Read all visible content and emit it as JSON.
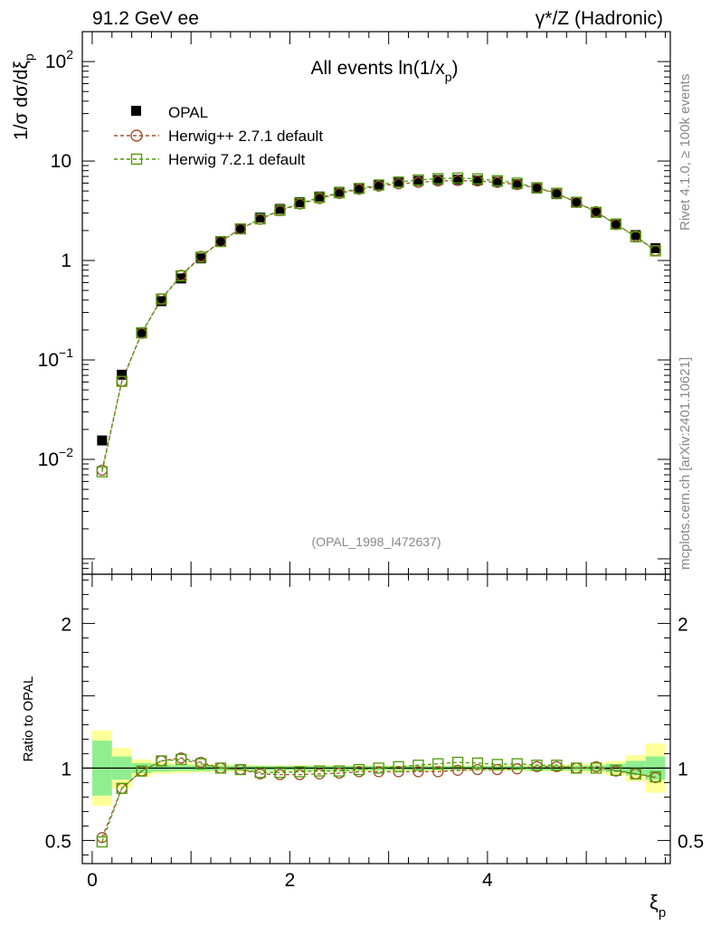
{
  "header": {
    "left": "91.2 GeV ee",
    "right": "γ*/Z (Hadronic)"
  },
  "side_labels": {
    "rivet": "Rivet 4.1.0, ≥ 100k events",
    "mcplots": "mcplots.cern.ch [arXiv:2401.10621]"
  },
  "colors": {
    "data": "#000000",
    "herwigpp": "#a0522d",
    "herwig7": "#4e9a06",
    "band_inner": "#90ee90",
    "band_outer": "#ffff99"
  },
  "chart_data": [
    {
      "type": "scatter",
      "panel": "main",
      "title": "All events ln(1/x",
      "title_sub": "p",
      "title_close": ")",
      "ylabel": "1/σ  dσ/dξ",
      "ylabel_sub": "p",
      "yscale": "log",
      "ylim": [
        0.0007,
        200
      ],
      "xlim": [
        -0.1,
        5.85
      ],
      "y_ticks": [
        {
          "v": 0.01,
          "base": "10",
          "exp": "−2"
        },
        {
          "v": 0.1,
          "base": "10",
          "exp": "−1"
        },
        {
          "v": 1,
          "base": "1",
          "exp": ""
        },
        {
          "v": 10,
          "base": "10",
          "exp": ""
        },
        {
          "v": 100,
          "base": "10",
          "exp": "2"
        }
      ],
      "watermark": "(OPAL_1998_I472637)",
      "legend": [
        "OPAL",
        "Herwig++ 2.7.1 default",
        "Herwig 7.2.1 default"
      ],
      "x": [
        0.1,
        0.3,
        0.5,
        0.7,
        0.9,
        1.1,
        1.3,
        1.5,
        1.7,
        1.9,
        2.1,
        2.3,
        2.5,
        2.7,
        2.9,
        3.1,
        3.3,
        3.5,
        3.7,
        3.9,
        4.1,
        4.3,
        4.5,
        4.7,
        4.9,
        5.1,
        5.3,
        5.5,
        5.7
      ],
      "series": [
        {
          "name": "OPAL",
          "values": [
            0.0155,
            0.071,
            0.19,
            0.39,
            0.66,
            1.05,
            1.55,
            2.1,
            2.7,
            3.3,
            3.85,
            4.4,
            4.9,
            5.35,
            5.75,
            6.05,
            6.3,
            6.45,
            6.5,
            6.4,
            6.2,
            5.85,
            5.3,
            4.65,
            3.85,
            3.05,
            2.35,
            1.8,
            1.33
          ]
        },
        {
          "name": "Herwig++ 2.7.1 default",
          "values": [
            0.0078,
            0.061,
            0.185,
            0.41,
            0.71,
            1.1,
            1.55,
            2.08,
            2.6,
            3.17,
            3.7,
            4.2,
            4.72,
            5.2,
            5.6,
            5.9,
            6.1,
            6.3,
            6.35,
            6.3,
            6.1,
            5.8,
            5.35,
            4.7,
            3.85,
            3.1,
            2.3,
            1.75,
            1.26
          ]
        },
        {
          "name": "Herwig 7.2.1 default",
          "values": [
            0.0075,
            0.061,
            0.187,
            0.41,
            0.7,
            1.08,
            1.55,
            2.08,
            2.62,
            3.2,
            3.75,
            4.3,
            4.8,
            5.3,
            5.75,
            6.15,
            6.45,
            6.65,
            6.75,
            6.62,
            6.35,
            6.0,
            5.4,
            4.75,
            3.85,
            3.05,
            2.32,
            1.73,
            1.25
          ]
        }
      ]
    },
    {
      "type": "scatter",
      "panel": "ratio",
      "ylabel": "Ratio to OPAL",
      "xlabel": "ξ",
      "xlabel_sub": "p",
      "ylim": [
        0.34,
        2.34
      ],
      "xlim": [
        -0.1,
        5.85
      ],
      "y_ticks": [
        0.5,
        1,
        2
      ],
      "y_tick_labels": [
        "0.5",
        "1",
        "2"
      ],
      "x_ticks": [
        0,
        2,
        4
      ],
      "x_tick_labels": [
        "0",
        "2",
        "4"
      ],
      "x": [
        0.1,
        0.3,
        0.5,
        0.7,
        0.9,
        1.1,
        1.3,
        1.5,
        1.7,
        1.9,
        2.1,
        2.3,
        2.5,
        2.7,
        2.9,
        3.1,
        3.3,
        3.5,
        3.7,
        3.9,
        4.1,
        4.3,
        4.5,
        4.7,
        4.9,
        5.1,
        5.3,
        5.5,
        5.7
      ],
      "band_inner": [
        0.19,
        0.08,
        0.035,
        0.025,
        0.02,
        0.02,
        0.018,
        0.017,
        0.016,
        0.015,
        0.015,
        0.015,
        0.015,
        0.015,
        0.015,
        0.015,
        0.015,
        0.015,
        0.015,
        0.015,
        0.015,
        0.015,
        0.016,
        0.017,
        0.018,
        0.02,
        0.03,
        0.05,
        0.08
      ],
      "band_outer": [
        0.26,
        0.14,
        0.06,
        0.04,
        0.035,
        0.03,
        0.025,
        0.025,
        0.02,
        0.02,
        0.02,
        0.02,
        0.02,
        0.02,
        0.02,
        0.02,
        0.02,
        0.02,
        0.02,
        0.02,
        0.02,
        0.02,
        0.022,
        0.025,
        0.028,
        0.035,
        0.05,
        0.09,
        0.17
      ],
      "series": [
        {
          "name": "Herwig++ 2.7.1 default",
          "values": [
            0.52,
            0.86,
            0.98,
            1.05,
            1.07,
            1.04,
            1.0,
            0.99,
            0.96,
            0.955,
            0.955,
            0.96,
            0.965,
            0.975,
            0.975,
            0.975,
            0.975,
            0.975,
            0.985,
            0.99,
            0.99,
            0.995,
            1.01,
            1.01,
            1.0,
            1.01,
            0.98,
            0.96,
            0.935
          ]
        },
        {
          "name": "Herwig 7.2.1 default",
          "values": [
            0.49,
            0.86,
            0.98,
            1.05,
            1.06,
            1.03,
            1.0,
            0.99,
            0.97,
            0.97,
            0.975,
            0.98,
            0.98,
            0.99,
            1.0,
            1.01,
            1.02,
            1.03,
            1.04,
            1.035,
            1.025,
            1.03,
            1.02,
            1.02,
            1.0,
            1.0,
            0.985,
            0.96,
            0.94
          ]
        }
      ]
    }
  ]
}
